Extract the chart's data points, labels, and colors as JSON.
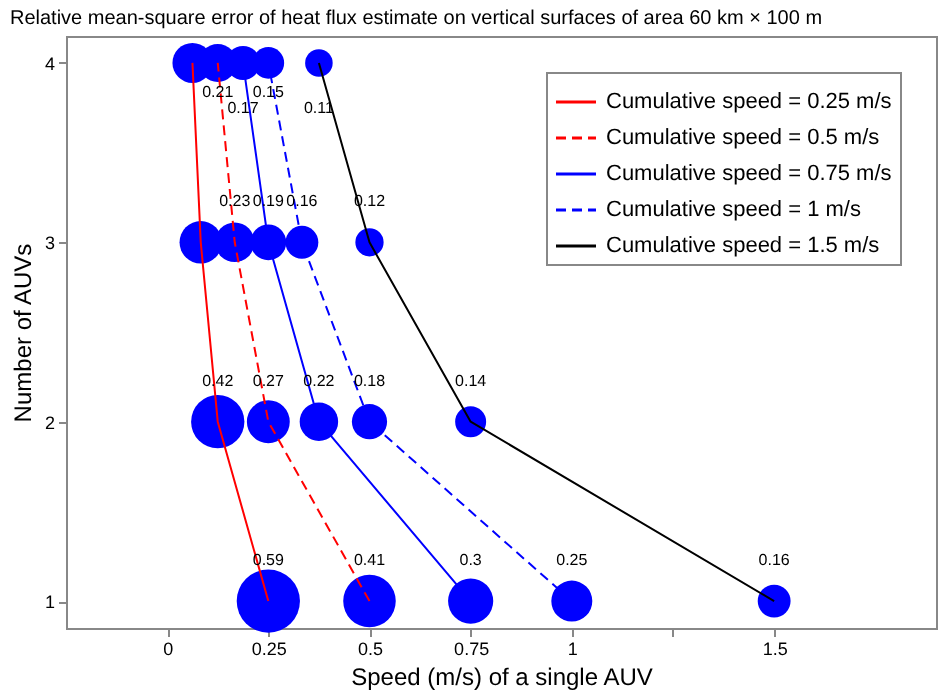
{
  "chart_data": {
    "type": "line",
    "title": "Relative mean-square error of heat flux estimate on vertical surfaces of area 60 km × 100 m",
    "xlabel": "Speed (m/s) of a single AUV",
    "ylabel": "Number of AUVs",
    "xlim": [
      -0.25,
      1.9
    ],
    "xticks": [
      0,
      0.25,
      0.5,
      0.75,
      1,
      {
        "value": 1.25,
        "label": null
      },
      1.5
    ],
    "ylim": [
      0.85,
      4.15
    ],
    "yticks": [
      1,
      2,
      3,
      4
    ],
    "grid": false,
    "legend": "top right",
    "series": [
      {
        "name": "Cumulative speed = 0.25 m/s",
        "color": "#ff0000",
        "line_style": "solid",
        "x": [
          0.25,
          0.125,
          0.083,
          0.0625
        ],
        "values": [
          1,
          2,
          3,
          4
        ]
      },
      {
        "name": "Cumulative speed = 0.5 m/s",
        "color": "#ff0000",
        "line_style": "dashed",
        "x": [
          0.5,
          0.25,
          0.167,
          0.125
        ],
        "values": [
          1,
          2,
          3,
          4
        ]
      },
      {
        "name": "Cumulative speed = 0.75 m/s",
        "color": "#0000ff",
        "line_style": "solid",
        "x": [
          0.75,
          0.375,
          0.25,
          0.1875
        ],
        "values": [
          1,
          2,
          3,
          4
        ]
      },
      {
        "name": "Cumulative speed = 1 m/s",
        "color": "#0000ff",
        "line_style": "dashed",
        "x": [
          1,
          0.5,
          0.333,
          0.25
        ],
        "values": [
          1,
          2,
          3,
          4
        ]
      },
      {
        "name": "Cumulative speed = 1.5 m/s",
        "color": "#000000",
        "line_style": "solid",
        "x": [
          1.5,
          0.75,
          0.5,
          0.375
        ],
        "values": [
          1,
          2,
          3,
          4
        ]
      },
      {
        "type": "bubble",
        "color": "#0000ff",
        "x": [
          0.25,
          0.5,
          0.75,
          1,
          1.5,
          0.125,
          0.25,
          0.375,
          0.5,
          0.75,
          0.083,
          0.167,
          0.25,
          0.333,
          0.5,
          0.0625,
          0.125,
          0.1875,
          0.25,
          0.375
        ],
        "values": [
          1,
          1,
          1,
          1,
          1,
          2,
          2,
          2,
          2,
          2,
          3,
          3,
          3,
          3,
          3,
          4,
          4,
          4,
          4,
          4
        ],
        "sizes": [
          1,
          0.69,
          0.51,
          0.42,
          0.27,
          0.71,
          0.46,
          0.37,
          0.31,
          0.24,
          0.45,
          0.39,
          0.32,
          0.27,
          0.2,
          0.4,
          0.36,
          0.29,
          0.25,
          0.19
        ]
      }
    ],
    "annotations": [
      {
        "text": "0.59",
        "x": 0.25,
        "y": 1
      },
      {
        "text": "0.41",
        "x": 0.5,
        "y": 1
      },
      {
        "text": "0.3",
        "x": 0.75,
        "y": 1
      },
      {
        "text": "0.25",
        "x": 1,
        "y": 1
      },
      {
        "text": "0.16",
        "x": 1.5,
        "y": 1
      },
      {
        "text": "0.42",
        "x": 0.125,
        "y": 2
      },
      {
        "text": "0.27",
        "x": 0.25,
        "y": 2
      },
      {
        "text": "0.22",
        "x": 0.375,
        "y": 2
      },
      {
        "text": "0.18",
        "x": 0.5,
        "y": 2
      },
      {
        "text": "0.14",
        "x": 0.75,
        "y": 2
      },
      {
        "text": "0.23",
        "x": 0.167,
        "y": 3
      },
      {
        "text": "0.19",
        "x": 0.25,
        "y": 3
      },
      {
        "text": "0.16",
        "x": 0.333,
        "y": 3
      },
      {
        "text": "0.12",
        "x": 0.5,
        "y": 3
      },
      {
        "text": "0.21",
        "x": 0.125,
        "y": 4
      },
      {
        "text": "0.17",
        "x": 0.1875,
        "y": 4
      },
      {
        "text": "0.15",
        "x": 0.25,
        "y": 4
      },
      {
        "text": "0.11",
        "x": 0.375,
        "y": 4
      }
    ]
  }
}
